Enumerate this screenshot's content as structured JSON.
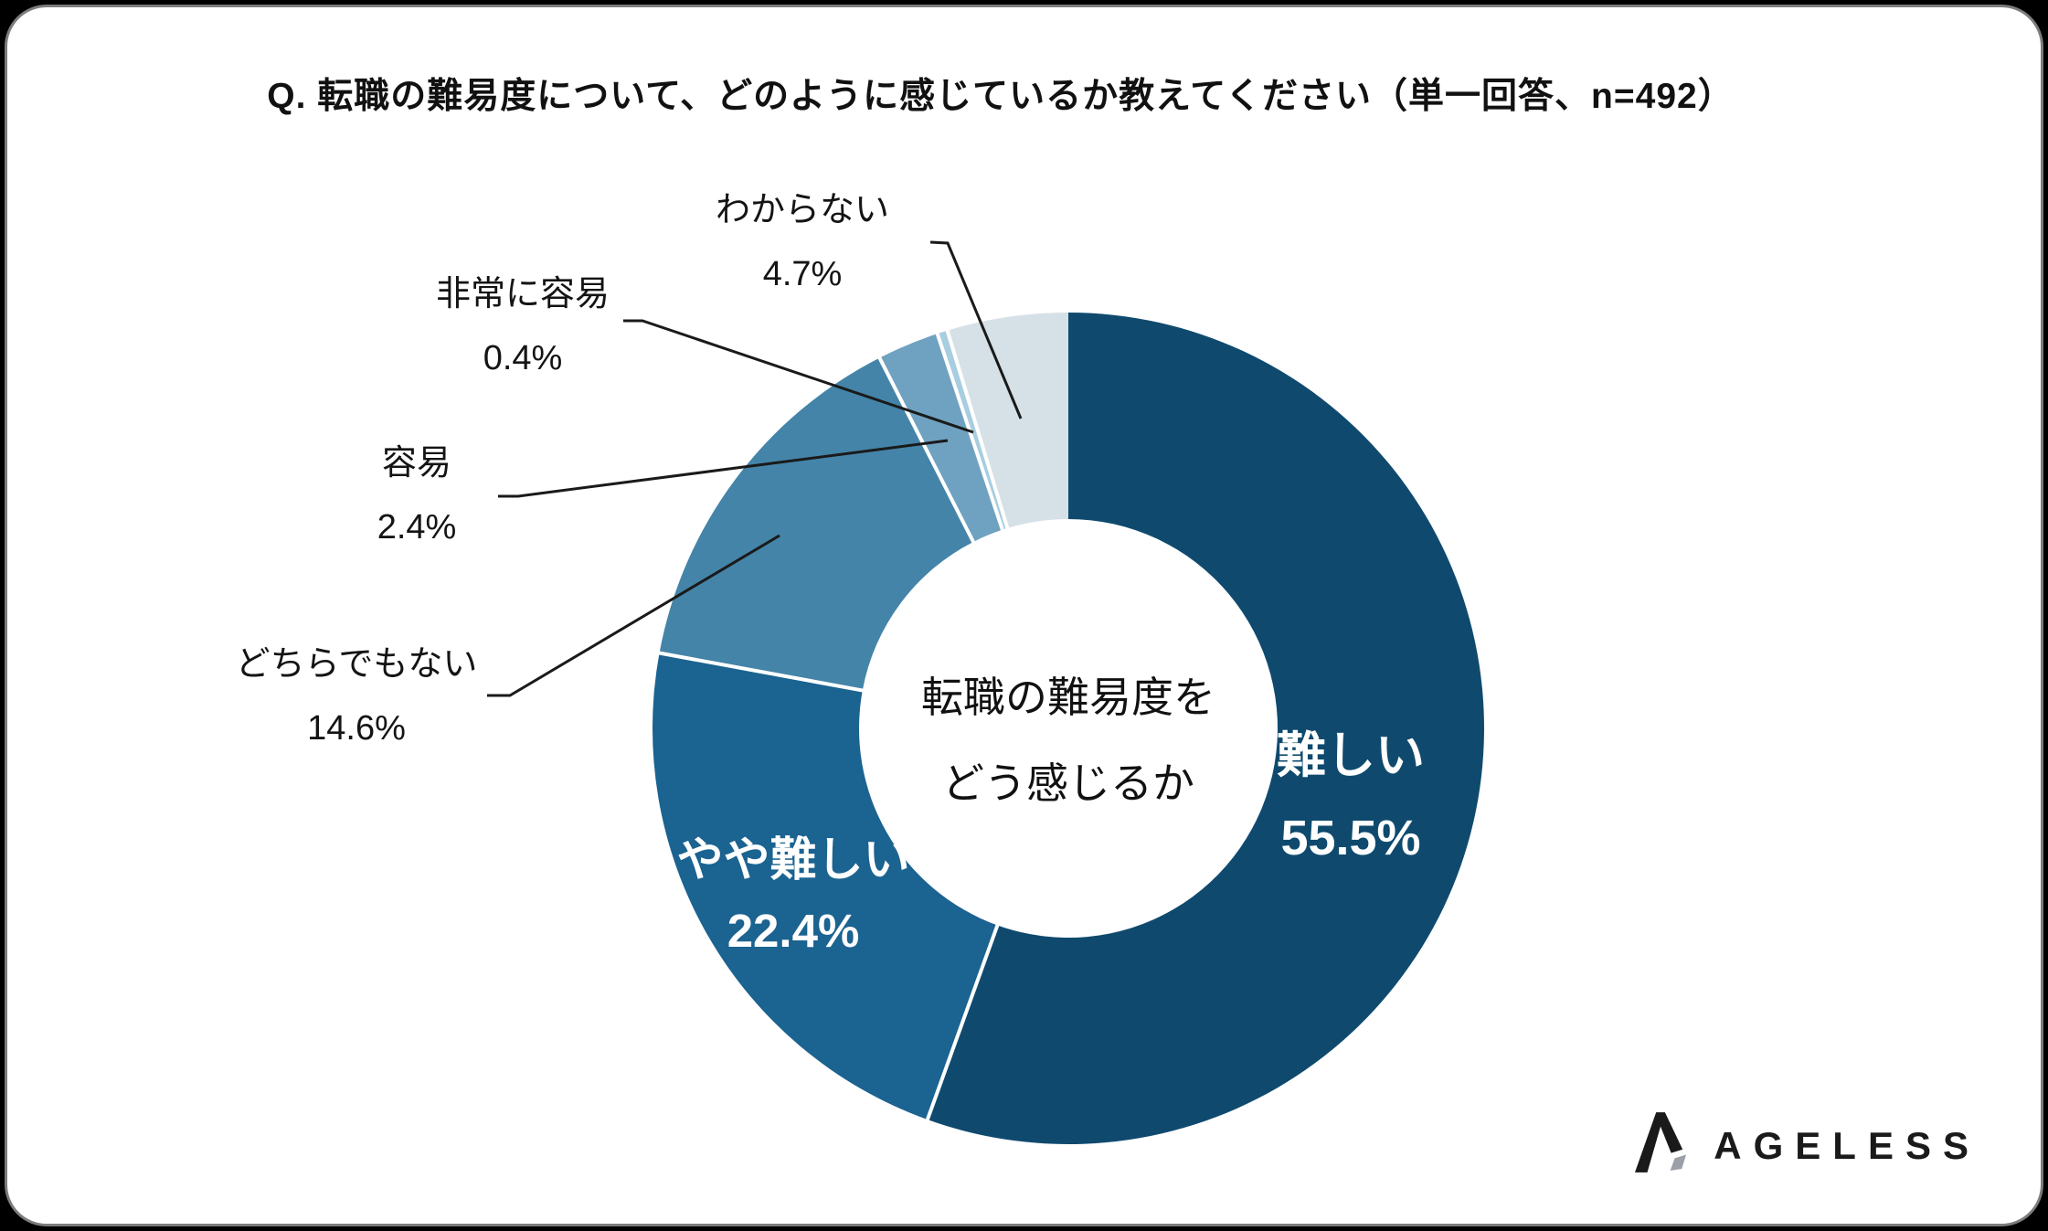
{
  "title": "Q. 転職の難易度について、どのように感じているか教えてください（単一回答、n=492）",
  "center_label": {
    "line1": "転職の難易度を",
    "line2": "どう感じるか"
  },
  "chart_data": {
    "type": "pie",
    "variant": "donut",
    "title": "転職の難易度をどう感じるか",
    "sample_size_label": "n=492",
    "answer_type_label": "単一回答",
    "unit": "%",
    "start_angle_deg": 0,
    "direction": "clockwise",
    "legend_position": "none",
    "segments": [
      {
        "label": "難しい",
        "value": 55.5,
        "display": "55.5%",
        "color": "#0F4A6E",
        "label_placement": "inside"
      },
      {
        "label": "やや難しい",
        "value": 22.4,
        "display": "22.4%",
        "color": "#1B6390",
        "label_placement": "inside"
      },
      {
        "label": "どちらでもない",
        "value": 14.6,
        "display": "14.6%",
        "color": "#4484A8",
        "label_placement": "outside"
      },
      {
        "label": "容易",
        "value": 2.4,
        "display": "2.4%",
        "color": "#6FA2C0",
        "label_placement": "outside"
      },
      {
        "label": "非常に容易",
        "value": 0.4,
        "display": "0.4%",
        "color": "#A7CDE0",
        "label_placement": "outside"
      },
      {
        "label": "わからない",
        "value": 4.7,
        "display": "4.7%",
        "color": "#D6E1E7",
        "label_placement": "outside"
      }
    ],
    "leader_line_color": "#1a1a1a",
    "separator_color": "#ffffff"
  },
  "logo": {
    "brand": "AGELESS"
  }
}
